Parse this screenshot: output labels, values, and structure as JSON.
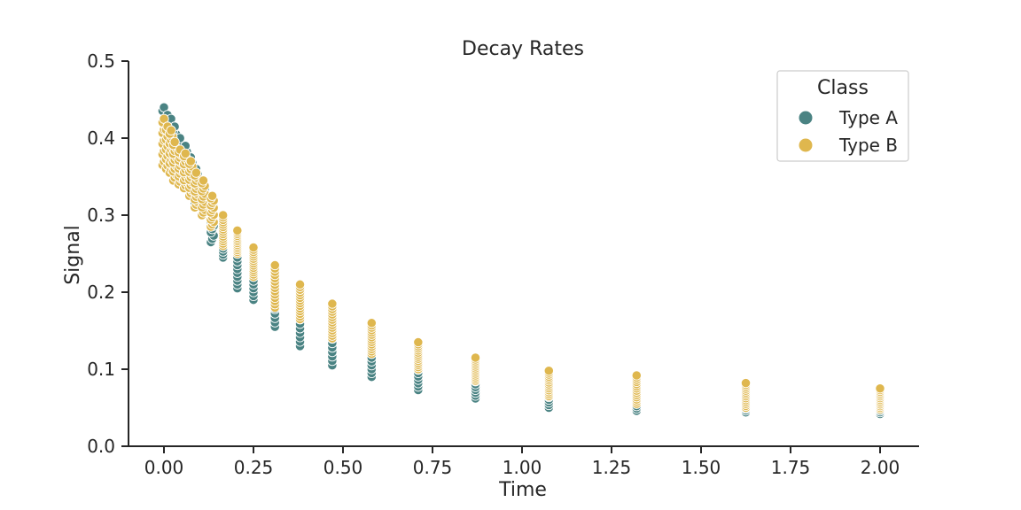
{
  "chart_data": {
    "type": "scatter",
    "title": "Decay Rates",
    "xlabel": "Time",
    "ylabel": "Signal",
    "xlim": [
      -0.1,
      2.11
    ],
    "ylim": [
      0.0,
      0.5
    ],
    "xticks": [
      "0.00",
      "0.25",
      "0.50",
      "0.75",
      "1.00",
      "1.25",
      "1.50",
      "1.75",
      "2.00"
    ],
    "yticks": [
      "0.0",
      "0.1",
      "0.2",
      "0.3",
      "0.4",
      "0.5"
    ],
    "grid": false,
    "legend": {
      "title": "Class",
      "placement": "top-right"
    },
    "colors": {
      "Type A": "#4a8383",
      "Type B": "#dfb74e"
    },
    "x_levels": [
      0.0,
      0.01,
      0.02,
      0.03,
      0.045,
      0.06,
      0.075,
      0.09,
      0.11,
      0.135,
      0.165,
      0.205,
      0.25,
      0.31,
      0.38,
      0.47,
      0.58,
      0.71,
      0.87,
      1.075,
      1.32,
      1.625,
      2.0
    ],
    "series": [
      {
        "name": "Type A",
        "y_range": [
          [
            0.38,
            0.44
          ],
          [
            0.37,
            0.43
          ],
          [
            0.36,
            0.425
          ],
          [
            0.35,
            0.415
          ],
          [
            0.345,
            0.4
          ],
          [
            0.34,
            0.39
          ],
          [
            0.33,
            0.375
          ],
          [
            0.315,
            0.36
          ],
          [
            0.3,
            0.34
          ],
          [
            0.265,
            0.32
          ],
          [
            0.245,
            0.295
          ],
          [
            0.205,
            0.27
          ],
          [
            0.19,
            0.255
          ],
          [
            0.155,
            0.23
          ],
          [
            0.13,
            0.205
          ],
          [
            0.105,
            0.18
          ],
          [
            0.09,
            0.155
          ],
          [
            0.073,
            0.13
          ],
          [
            0.062,
            0.11
          ],
          [
            0.05,
            0.095
          ],
          [
            0.046,
            0.085
          ],
          [
            0.044,
            0.075
          ],
          [
            0.042,
            0.07
          ]
        ]
      },
      {
        "name": "Type B",
        "y_range": [
          [
            0.365,
            0.425
          ],
          [
            0.36,
            0.415
          ],
          [
            0.355,
            0.41
          ],
          [
            0.345,
            0.395
          ],
          [
            0.34,
            0.385
          ],
          [
            0.335,
            0.38
          ],
          [
            0.325,
            0.37
          ],
          [
            0.31,
            0.355
          ],
          [
            0.3,
            0.345
          ],
          [
            0.285,
            0.325
          ],
          [
            0.26,
            0.3
          ],
          [
            0.25,
            0.28
          ],
          [
            0.22,
            0.258
          ],
          [
            0.18,
            0.235
          ],
          [
            0.165,
            0.21
          ],
          [
            0.14,
            0.185
          ],
          [
            0.12,
            0.16
          ],
          [
            0.1,
            0.135
          ],
          [
            0.085,
            0.115
          ],
          [
            0.065,
            0.098
          ],
          [
            0.055,
            0.092
          ],
          [
            0.05,
            0.082
          ],
          [
            0.048,
            0.075
          ]
        ]
      }
    ]
  }
}
